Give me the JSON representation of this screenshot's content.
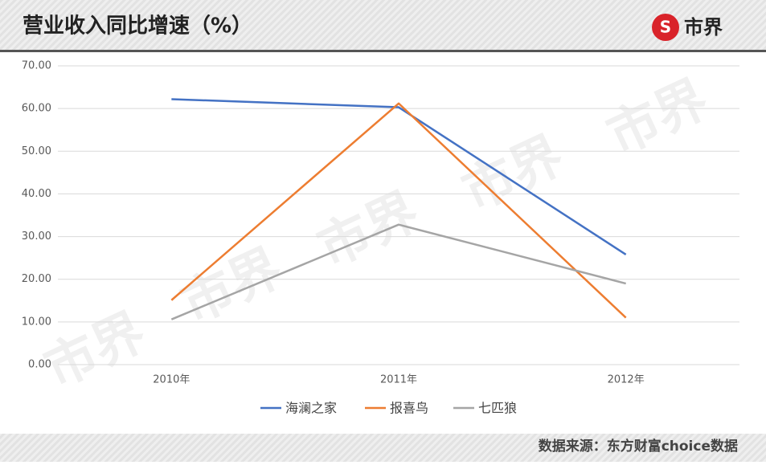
{
  "chart_data": {
    "type": "line",
    "title": "营业收入同比增速（%）",
    "logo": "市界",
    "watermark": "市界",
    "source": "数据来源：东方财富choice数据",
    "categories": [
      "2010年",
      "2011年",
      "2012年"
    ],
    "series": [
      {
        "name": "海澜之家",
        "color": "#4472c4",
        "values": [
          62.2,
          60.3,
          25.8
        ]
      },
      {
        "name": "报喜鸟",
        "color": "#ed7d31",
        "values": [
          15.1,
          61.2,
          11.0
        ]
      },
      {
        "name": "七匹狼",
        "color": "#a5a5a5",
        "values": [
          10.6,
          32.8,
          19.0
        ]
      }
    ],
    "ylim": [
      0,
      70
    ],
    "yticks": [
      {
        "value": 0,
        "label": "0.00"
      },
      {
        "value": 10,
        "label": "10.00"
      },
      {
        "value": 20,
        "label": "20.00"
      },
      {
        "value": 30,
        "label": "30.00"
      },
      {
        "value": 40,
        "label": "40.00"
      },
      {
        "value": 50,
        "label": "50.00"
      },
      {
        "value": 60,
        "label": "60.00"
      },
      {
        "value": 70,
        "label": "70.00"
      }
    ],
    "grid": true,
    "legend": "bottom"
  }
}
